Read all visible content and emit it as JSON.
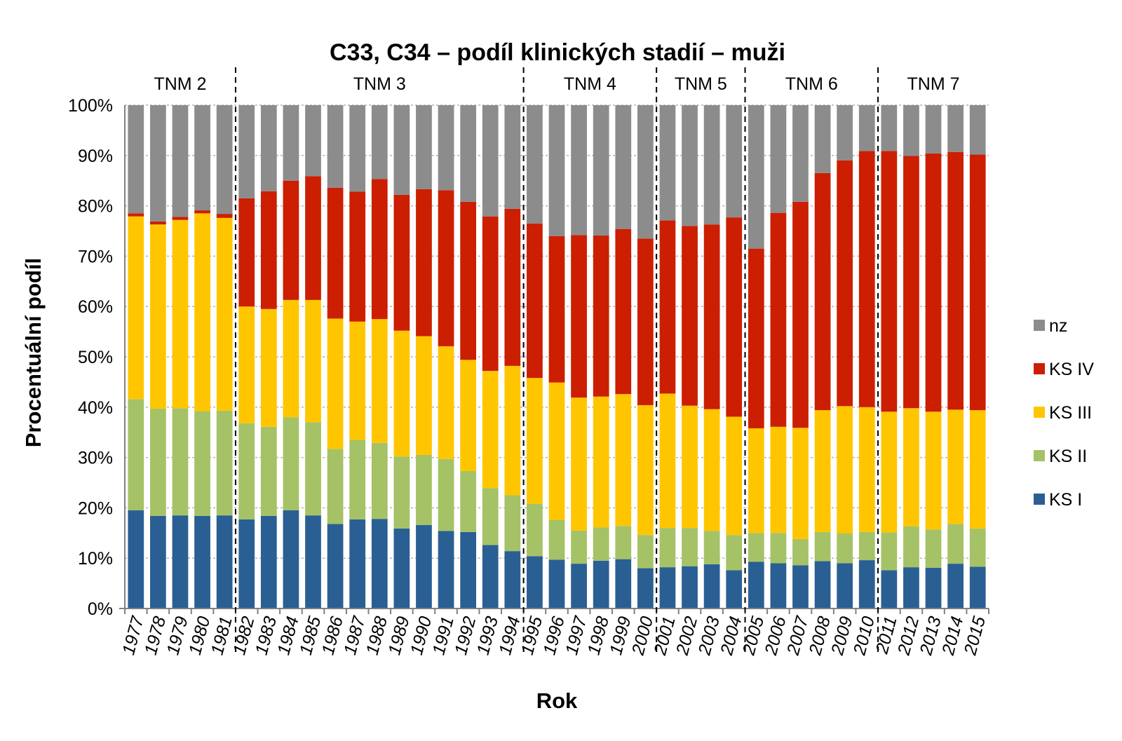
{
  "chart_data": {
    "type": "bar",
    "stacked": true,
    "title": "C33, C34 – podíl klinických stadií – muži",
    "xlabel": "Rok",
    "ylabel": "Procentuální podíl",
    "ylim": [
      0,
      100
    ],
    "yticks": [
      "0%",
      "10%",
      "20%",
      "30%",
      "40%",
      "50%",
      "60%",
      "70%",
      "80%",
      "90%",
      "100%"
    ],
    "grid": true,
    "legend_position": "right",
    "categories": [
      "1977",
      "1978",
      "1979",
      "1980",
      "1981",
      "1982",
      "1983",
      "1984",
      "1985",
      "1986",
      "1987",
      "1988",
      "1989",
      "1990",
      "1991",
      "1992",
      "1993",
      "1994",
      "1995",
      "1996",
      "1997",
      "1998",
      "1999",
      "2000",
      "2001",
      "2002",
      "2003",
      "2004",
      "2005",
      "2006",
      "2007",
      "2008",
      "2009",
      "2010",
      "2011",
      "2012",
      "2013",
      "2014",
      "2015"
    ],
    "periods": [
      {
        "label": "TNM 2",
        "start": "1977",
        "end": "1981"
      },
      {
        "label": "TNM 3",
        "start": "1982",
        "end": "1994"
      },
      {
        "label": "TNM 4",
        "start": "1995",
        "end": "2000"
      },
      {
        "label": "TNM 5",
        "start": "2001",
        "end": "2004"
      },
      {
        "label": "TNM 6",
        "start": "2005",
        "end": "2010"
      },
      {
        "label": "TNM 7",
        "start": "2011",
        "end": "2015"
      }
    ],
    "series": [
      {
        "name": "KS I",
        "color": "#2a5f94",
        "values": [
          19.5,
          18.4,
          18.5,
          18.4,
          18.5,
          17.7,
          18.4,
          19.5,
          18.5,
          16.8,
          17.7,
          17.8,
          15.9,
          16.6,
          15.4,
          15.2,
          12.6,
          11.4,
          10.4,
          9.7,
          8.9,
          9.5,
          9.8,
          8.0,
          8.2,
          8.4,
          8.8,
          7.6,
          9.3,
          9.0,
          8.6,
          9.4,
          9.0,
          9.6,
          7.6,
          8.2,
          8.1,
          8.9,
          8.3
        ]
      },
      {
        "name": "KS II",
        "color": "#a5c266",
        "values": [
          22.1,
          21.3,
          21.3,
          20.8,
          20.8,
          19.1,
          17.7,
          18.5,
          18.5,
          14.9,
          15.8,
          15.1,
          14.3,
          13.9,
          14.3,
          12.1,
          11.3,
          11.1,
          10.4,
          7.9,
          6.6,
          6.6,
          6.6,
          6.6,
          7.8,
          7.6,
          6.6,
          7.0,
          5.7,
          6.0,
          5.2,
          5.8,
          5.9,
          5.6,
          7.5,
          8.1,
          7.6,
          7.9,
          7.6
        ]
      },
      {
        "name": "KS III",
        "color": "#ffc600",
        "values": [
          36.3,
          36.6,
          37.4,
          39.3,
          38.3,
          23.2,
          23.4,
          23.3,
          24.3,
          25.9,
          23.5,
          24.6,
          25.0,
          23.6,
          22.4,
          22.1,
          23.3,
          25.7,
          25.0,
          27.3,
          26.4,
          26.0,
          26.2,
          25.8,
          26.7,
          24.3,
          24.2,
          23.5,
          20.8,
          21.1,
          22.1,
          24.2,
          25.3,
          24.8,
          24.0,
          23.5,
          23.4,
          22.7,
          23.5
        ]
      },
      {
        "name": "KS IV",
        "color": "#cc1e00",
        "values": [
          0.6,
          0.6,
          0.6,
          0.6,
          0.8,
          21.5,
          23.4,
          23.7,
          24.6,
          26.0,
          25.8,
          27.8,
          27.0,
          29.2,
          31.0,
          31.4,
          30.7,
          31.2,
          30.7,
          29.1,
          32.3,
          32.0,
          32.8,
          33.1,
          34.4,
          35.7,
          36.7,
          39.6,
          35.7,
          42.5,
          44.9,
          47.1,
          48.8,
          50.9,
          51.8,
          50.1,
          51.3,
          51.2,
          50.8
        ]
      },
      {
        "name": "nz",
        "color": "#8c8c8c",
        "values": [
          21.5,
          23.1,
          22.2,
          20.9,
          21.6,
          18.5,
          17.1,
          15.0,
          14.1,
          16.4,
          17.2,
          14.7,
          17.8,
          16.7,
          16.9,
          19.2,
          22.1,
          20.6,
          23.5,
          26.0,
          25.8,
          25.9,
          24.6,
          26.5,
          22.9,
          24.0,
          23.7,
          22.3,
          28.5,
          21.4,
          19.2,
          13.5,
          11.0,
          9.1,
          9.1,
          10.1,
          9.6,
          9.3,
          9.8
        ]
      }
    ]
  }
}
